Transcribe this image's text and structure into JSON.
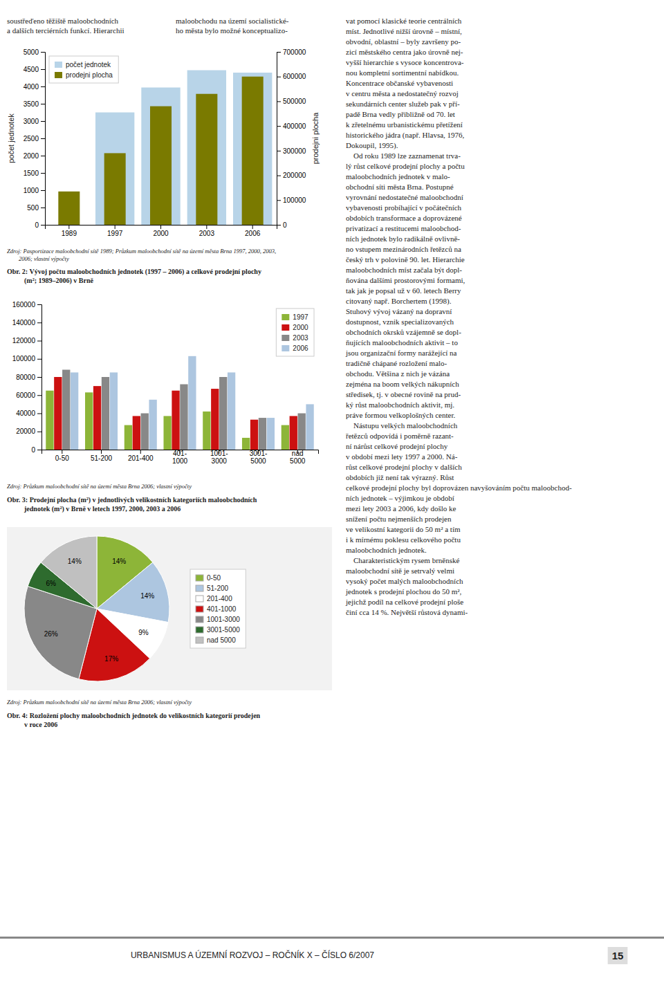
{
  "chart_data": [
    {
      "type": "bar",
      "title": "Obr. 2: Vývoj počtu maloobchodních jednotek (1997 – 2006) a celkové prodejní plochy\n          (m²; 1989–2006) v Brně",
      "annotations": [
        "Zdroj: Pasportizace maloobchodní sítě 1989; Průzkum maloobchodní sítě na území města Brna 1997, 2000, 2003,\n        2006; vlastní výpočty"
      ],
      "categories": [
        "1989",
        "1997",
        "2000",
        "2003",
        "2006"
      ],
      "series": [
        {
          "name": "počet jednotek",
          "color": "#b8d4e8",
          "values": [
            null,
            3250,
            3970,
            4470,
            4400
          ]
        },
        {
          "name": "prodejni plocha",
          "color": "#7a7a00",
          "axis": "y2",
          "values": [
            135000,
            290000,
            480000,
            530000,
            600000
          ]
        }
      ],
      "ylabel": "počet jednotek",
      "y2label": "prodejni plocha",
      "ylim": [
        0,
        5000
      ],
      "yticks": [
        0,
        500,
        1000,
        1500,
        2000,
        2500,
        3000,
        3500,
        4000,
        4500,
        5000
      ],
      "y2lim": [
        0,
        700000
      ],
      "y2ticks": [
        0,
        100000,
        200000,
        300000,
        400000,
        500000,
        600000,
        700000
      ],
      "legend": "upper left",
      "grid": false
    },
    {
      "type": "bar",
      "title": "Obr. 3: Prodejní plocha (m²) v jednotlivých velikostních kategoriích maloobchodních\n          jednotek (m²) v Brně v letech 1997, 2000, 2003 a 2006",
      "annotations": [
        "Zdroj: Průzkum maloobchodní sítě na území města Brna 2006; vlastní výpočty"
      ],
      "categories": [
        "0-50",
        "51-200",
        "201-400",
        "401-\n1000",
        "1001-\n3000",
        "3001-\n5000",
        "nad\n5000"
      ],
      "series": [
        {
          "name": "1997",
          "color": "#8db538",
          "values": [
            65000,
            63000,
            27000,
            37000,
            42000,
            13000,
            27000
          ]
        },
        {
          "name": "2000",
          "color": "#cc1111",
          "values": [
            80000,
            70000,
            37000,
            65000,
            67000,
            33000,
            37000
          ]
        },
        {
          "name": "2003",
          "color": "#888888",
          "values": [
            88000,
            80000,
            40000,
            72000,
            80000,
            35000,
            40000
          ]
        },
        {
          "name": "2006",
          "color": "#adc6e0",
          "values": [
            85000,
            85000,
            55000,
            103000,
            85000,
            35000,
            50000
          ]
        }
      ],
      "ylim": [
        0,
        160000
      ],
      "yticks": [
        0,
        20000,
        40000,
        60000,
        80000,
        100000,
        120000,
        140000,
        160000
      ],
      "legend": "upper right",
      "grid": false
    },
    {
      "type": "pie",
      "title": "Obr. 4: Rozložení plochy maloobchodních jednotek do velikostních kategorií prodejen\n          v roce 2006",
      "annotations": [
        "Zdroj: Průzkum maloobchodní sítě na území města Brna 2006; vlastní výpočty"
      ],
      "categories": [
        "0-50",
        "51-200",
        "201-400",
        "401-1000",
        "1001-3000",
        "3001-5000",
        "nad 5000"
      ],
      "values": [
        14,
        14,
        9,
        17,
        26,
        6,
        14
      ],
      "value_labels": [
        "14%",
        "14%",
        "9%",
        "17%",
        "26%",
        "6%",
        "14%"
      ],
      "colors": [
        "#8db538",
        "#adc6e0",
        "#ffffff",
        "#cc1111",
        "#888888",
        "#2e6b2e",
        "#c0c0c0"
      ],
      "data_labels": true,
      "legend": "right"
    }
  ],
  "annotations": [
    "soustřeďeno těžiště maloobchodních\na dalších terciérních funkcí. Hierarchii",
    "maloobchodu na území socialistické-\nho města bylo možné konceptualizo-",
    "vat pomocí klasické teorie centrálních\nmíst. Jednotlivé nižší úrovně – místní,\nobvodní, oblastní – byly završeny po-\nzicí městského centra jako úrovně nej-\nvyšší hierarchie s vysoce koncentrova-\nnou kompletní sortimentní nabídkou.\nKoncentrace občanské vybavenosti\nv centru města a nedostatečný rozvoj\nsekundárních center služeb pak v pří-\npadě Brna vedly přibližně od 70. let\nk zřetelnému urbanistickému přetížení\nhistorického jádra (např. Hlavsa, 1976,\nDokoupil, 1995).\n    Od roku 1989 lze zaznamenat trva-\nlý růst celkové prodejní plochy a počtu\nmaloobchodních jednotek v malo-\nobchodní síti města Brna. Postupné\nvyrovnání nedostatečné maloobchodní\nvybavenosti probíhající v počátečních\nobdobích transformace a doprovázené\nprivatizací a restitucemi maloobchod-\nních jednotek bylo radikálně ovlivně-\nno vstupem mezinárodních řetězců na\nčeský trh v polovině 90. let. Hierarchie\nmaloobchodních míst začala být dopl-\nňována dalšími prostorovými formami,\ntak jak je popsal už v 60. letech Berry\ncitovaný např. Borchertem (1998).\nStuhový vývoj vázaný na dopravní\ndostupnost, vznik specializovaných\nobchodních okrsků vzájemně se dopl-\nňujících maloobchodních aktivit – to\njsou organizační formy narážející na\ntradičně chápané rozložení malo-\nobchodu. Většina z nich je vázána\nzejména na boom velkých nákupních\nstředisek, tj. v obecné rovině na prud-\nký růst maloobchodních aktivit, mj.\npráve formou velkoplošných center.\n    Nástupu velkých maloobchodních\nřetězců odpovídá i poměrně razant-\nní nárůst celkové prodejní plochy\nv období mezi lety 1997 a 2000. Ná-\nrůst celkové prodejní plochy v dalších\nobdobích již není tak výrazný. Růst\ncelkové prodejní plochy byl doprovázen navyšováním počtu maloobchod-\nních jednotek – výjimkou je období\nmezi lety 2003 a 2006, kdy došlo ke\nsnížení počtu nejmenších prodejen\nve velikostní kategorii do 50 m² a tím\ni k mírnému poklesu celkového počtu\nmaloobchodních jednotek.\n    Charakteristickým rysem brněnské\nmaloobchodní sítě je setrvalý velmi\nvysoký počet malých maloobchodních\njednotek s prodejní plochou do 50 m²,\njejichž podíl na celkové prodejní ploše\nčiní cca 14 %. Největší růstová dynami-",
    "URBANISMUS A ÚZEMNÍ ROZVOJ – ROČNÍK X – ČÍSLO 6/2007",
    "15"
  ]
}
